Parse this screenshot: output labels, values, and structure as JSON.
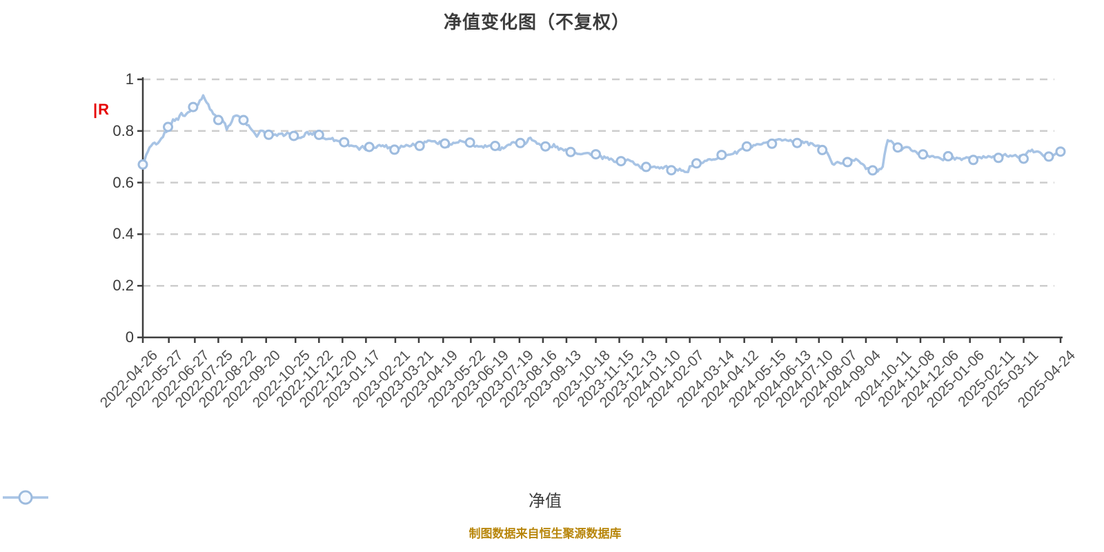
{
  "title": "净值变化图（不复权）",
  "y_axis_unit_mark": "|R",
  "legend": {
    "label": "净值"
  },
  "footer": "制图数据来自恒生聚源数据库",
  "colors": {
    "line": "#a8c4e5",
    "marker_edge": "#9dbbde",
    "marker_fill": "#f7faff",
    "grid": "#cdcdcd",
    "axis": "#3d3d3d",
    "title_text": "#3d3d3d",
    "x_tick_text": "#4f4f4f",
    "y_tick_text": "#3a3a3a",
    "footer_text": "#b8860b",
    "unit_mark": "#e60000"
  },
  "chart_data": {
    "type": "line",
    "title": "净值变化图（不复权）",
    "legend_entries": [
      "净值"
    ],
    "legend_position": "bottom",
    "grid": "dashed-horizontal",
    "ylim": [
      0,
      1
    ],
    "y_ticks": [
      0,
      0.2,
      0.4,
      0.6,
      0.8,
      1
    ],
    "x_start": "2022-04-26",
    "x_end": "2025-04-24",
    "x_tick_labels": [
      "2022-04-26",
      "2022-05-27",
      "2022-06-27",
      "2022-07-25",
      "2022-08-22",
      "2022-09-20",
      "2022-10-25",
      "2022-11-22",
      "2022-12-20",
      "2023-01-17",
      "2023-02-21",
      "2023-03-21",
      "2023-04-19",
      "2023-05-22",
      "2023-06-19",
      "2023-07-19",
      "2023-08-16",
      "2023-09-13",
      "2023-10-18",
      "2023-11-15",
      "2023-12-13",
      "2024-01-10",
      "2024-02-07",
      "2024-03-14",
      "2024-04-12",
      "2024-05-15",
      "2024-06-13",
      "2024-07-10",
      "2024-08-07",
      "2024-09-04",
      "2024-10-11",
      "2024-11-08",
      "2024-12-06",
      "2025-01-06",
      "2025-02-11",
      "2025-03-11",
      "2025-04-24"
    ],
    "series": [
      {
        "name": "净值",
        "points": [
          [
            "2022-04-26",
            0.67
          ],
          [
            "2022-04-28",
            0.69
          ],
          [
            "2022-05-05",
            0.74
          ],
          [
            "2022-05-10",
            0.75
          ],
          [
            "2022-05-13",
            0.742
          ],
          [
            "2022-05-20",
            0.78
          ],
          [
            "2022-05-24",
            0.8
          ],
          [
            "2022-05-27",
            0.818
          ],
          [
            "2022-06-01",
            0.84
          ],
          [
            "2022-06-07",
            0.848
          ],
          [
            "2022-06-10",
            0.868
          ],
          [
            "2022-06-15",
            0.858
          ],
          [
            "2022-06-21",
            0.88
          ],
          [
            "2022-06-24",
            0.89
          ],
          [
            "2022-06-27",
            0.905
          ],
          [
            "2022-06-30",
            0.898
          ],
          [
            "2022-07-05",
            0.928
          ],
          [
            "2022-07-08",
            0.935
          ],
          [
            "2022-07-12",
            0.905
          ],
          [
            "2022-07-15",
            0.888
          ],
          [
            "2022-07-19",
            0.868
          ],
          [
            "2022-07-22",
            0.858
          ],
          [
            "2022-07-25",
            0.84
          ],
          [
            "2022-07-28",
            0.856
          ],
          [
            "2022-08-02",
            0.828
          ],
          [
            "2022-08-04",
            0.81
          ],
          [
            "2022-08-10",
            0.838
          ],
          [
            "2022-08-15",
            0.868
          ],
          [
            "2022-08-18",
            0.858
          ],
          [
            "2022-08-22",
            0.85
          ],
          [
            "2022-08-25",
            0.838
          ],
          [
            "2022-08-31",
            0.815
          ],
          [
            "2022-09-06",
            0.788
          ],
          [
            "2022-09-09",
            0.782
          ],
          [
            "2022-09-14",
            0.8
          ],
          [
            "2022-09-20",
            0.79
          ],
          [
            "2022-09-26",
            0.776
          ],
          [
            "2022-09-30",
            0.782
          ],
          [
            "2022-10-11",
            0.786
          ],
          [
            "2022-10-14",
            0.792
          ],
          [
            "2022-10-19",
            0.782
          ],
          [
            "2022-10-25",
            0.776
          ],
          [
            "2022-10-31",
            0.768
          ],
          [
            "2022-11-04",
            0.782
          ],
          [
            "2022-11-08",
            0.796
          ],
          [
            "2022-11-11",
            0.786
          ],
          [
            "2022-11-16",
            0.792
          ],
          [
            "2022-11-22",
            0.786
          ],
          [
            "2022-11-29",
            0.766
          ],
          [
            "2022-12-05",
            0.776
          ],
          [
            "2022-12-09",
            0.766
          ],
          [
            "2022-12-14",
            0.762
          ],
          [
            "2022-12-20",
            0.756
          ],
          [
            "2022-12-26",
            0.748
          ],
          [
            "2023-01-03",
            0.742
          ],
          [
            "2023-01-09",
            0.728
          ],
          [
            "2023-01-13",
            0.736
          ],
          [
            "2023-01-17",
            0.73
          ],
          [
            "2023-01-31",
            0.742
          ],
          [
            "2023-02-07",
            0.744
          ],
          [
            "2023-02-14",
            0.736
          ],
          [
            "2023-02-21",
            0.728
          ],
          [
            "2023-02-27",
            0.74
          ],
          [
            "2023-03-07",
            0.744
          ],
          [
            "2023-03-14",
            0.748
          ],
          [
            "2023-03-21",
            0.745
          ],
          [
            "2023-03-28",
            0.756
          ],
          [
            "2023-04-04",
            0.764
          ],
          [
            "2023-04-12",
            0.754
          ],
          [
            "2023-04-19",
            0.755
          ],
          [
            "2023-04-25",
            0.744
          ],
          [
            "2023-05-05",
            0.756
          ],
          [
            "2023-05-11",
            0.76
          ],
          [
            "2023-05-16",
            0.754
          ],
          [
            "2023-05-22",
            0.75
          ],
          [
            "2023-05-29",
            0.74
          ],
          [
            "2023-06-05",
            0.738
          ],
          [
            "2023-06-12",
            0.742
          ],
          [
            "2023-06-19",
            0.74
          ],
          [
            "2023-06-26",
            0.73
          ],
          [
            "2023-07-03",
            0.742
          ],
          [
            "2023-07-10",
            0.752
          ],
          [
            "2023-07-19",
            0.754
          ],
          [
            "2023-07-25",
            0.75
          ],
          [
            "2023-07-31",
            0.772
          ],
          [
            "2023-08-04",
            0.764
          ],
          [
            "2023-08-10",
            0.754
          ],
          [
            "2023-08-16",
            0.74
          ],
          [
            "2023-08-23",
            0.734
          ],
          [
            "2023-08-29",
            0.744
          ],
          [
            "2023-09-05",
            0.73
          ],
          [
            "2023-09-13",
            0.722
          ],
          [
            "2023-09-20",
            0.718
          ],
          [
            "2023-09-28",
            0.714
          ],
          [
            "2023-10-12",
            0.712
          ],
          [
            "2023-10-18",
            0.708
          ],
          [
            "2023-10-24",
            0.698
          ],
          [
            "2023-10-31",
            0.694
          ],
          [
            "2023-11-07",
            0.686
          ],
          [
            "2023-11-15",
            0.682
          ],
          [
            "2023-11-21",
            0.69
          ],
          [
            "2023-11-28",
            0.684
          ],
          [
            "2023-12-05",
            0.672
          ],
          [
            "2023-12-13",
            0.655
          ],
          [
            "2023-12-19",
            0.66
          ],
          [
            "2023-12-26",
            0.664
          ],
          [
            "2024-01-03",
            0.658
          ],
          [
            "2024-01-10",
            0.662
          ],
          [
            "2024-01-17",
            0.65
          ],
          [
            "2024-01-23",
            0.645
          ],
          [
            "2024-01-30",
            0.652
          ],
          [
            "2024-02-02",
            0.644
          ],
          [
            "2024-02-06",
            0.64
          ],
          [
            "2024-02-07",
            0.66
          ],
          [
            "2024-02-19",
            0.676
          ],
          [
            "2024-02-26",
            0.682
          ],
          [
            "2024-03-05",
            0.692
          ],
          [
            "2024-03-14",
            0.7
          ],
          [
            "2024-03-20",
            0.706
          ],
          [
            "2024-03-27",
            0.712
          ],
          [
            "2024-04-03",
            0.716
          ],
          [
            "2024-04-12",
            0.738
          ],
          [
            "2024-04-18",
            0.734
          ],
          [
            "2024-04-25",
            0.742
          ],
          [
            "2024-05-06",
            0.75
          ],
          [
            "2024-05-15",
            0.754
          ],
          [
            "2024-05-21",
            0.768
          ],
          [
            "2024-05-28",
            0.764
          ],
          [
            "2024-06-03",
            0.768
          ],
          [
            "2024-06-07",
            0.762
          ],
          [
            "2024-06-13",
            0.755
          ],
          [
            "2024-06-19",
            0.76
          ],
          [
            "2024-06-26",
            0.752
          ],
          [
            "2024-07-03",
            0.748
          ],
          [
            "2024-07-10",
            0.738
          ],
          [
            "2024-07-17",
            0.724
          ],
          [
            "2024-07-23",
            0.7
          ],
          [
            "2024-07-26",
            0.668
          ],
          [
            "2024-08-01",
            0.684
          ],
          [
            "2024-08-07",
            0.674
          ],
          [
            "2024-08-14",
            0.68
          ],
          [
            "2024-08-20",
            0.692
          ],
          [
            "2024-08-27",
            0.68
          ],
          [
            "2024-09-02",
            0.668
          ],
          [
            "2024-09-04",
            0.658
          ],
          [
            "2024-09-11",
            0.648
          ],
          [
            "2024-09-14",
            0.64
          ],
          [
            "2024-09-19",
            0.646
          ],
          [
            "2024-09-24",
            0.658
          ],
          [
            "2024-09-27",
            0.726
          ],
          [
            "2024-09-30",
            0.764
          ],
          [
            "2024-10-09",
            0.748
          ],
          [
            "2024-10-11",
            0.736
          ],
          [
            "2024-10-16",
            0.73
          ],
          [
            "2024-10-22",
            0.736
          ],
          [
            "2024-10-28",
            0.728
          ],
          [
            "2024-11-04",
            0.716
          ],
          [
            "2024-11-08",
            0.706
          ],
          [
            "2024-11-14",
            0.712
          ],
          [
            "2024-11-21",
            0.7
          ],
          [
            "2024-11-27",
            0.696
          ],
          [
            "2024-12-03",
            0.69
          ],
          [
            "2024-12-06",
            0.692
          ],
          [
            "2024-12-12",
            0.7
          ],
          [
            "2024-12-18",
            0.694
          ],
          [
            "2024-12-25",
            0.69
          ],
          [
            "2025-01-02",
            0.696
          ],
          [
            "2025-01-06",
            0.698
          ],
          [
            "2025-01-10",
            0.69
          ],
          [
            "2025-01-16",
            0.694
          ],
          [
            "2025-01-23",
            0.7
          ],
          [
            "2025-02-05",
            0.702
          ],
          [
            "2025-02-11",
            0.698
          ],
          [
            "2025-02-18",
            0.706
          ],
          [
            "2025-02-25",
            0.704
          ],
          [
            "2025-03-04",
            0.7
          ],
          [
            "2025-03-11",
            0.698
          ],
          [
            "2025-03-14",
            0.712
          ],
          [
            "2025-03-18",
            0.724
          ],
          [
            "2025-03-25",
            0.72
          ],
          [
            "2025-03-31",
            0.716
          ],
          [
            "2025-04-03",
            0.704
          ],
          [
            "2025-04-08",
            0.693
          ],
          [
            "2025-04-15",
            0.706
          ],
          [
            "2025-04-21",
            0.714
          ],
          [
            "2025-04-24",
            0.72
          ]
        ]
      }
    ]
  }
}
